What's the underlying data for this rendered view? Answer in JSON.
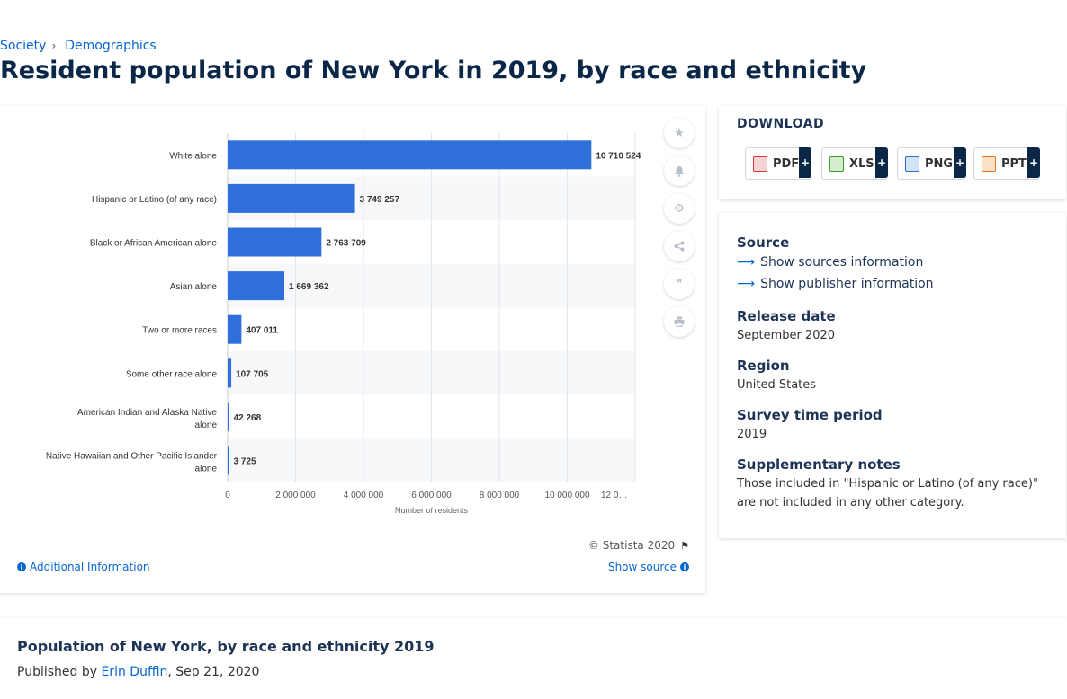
{
  "breadcrumb": {
    "item1": "Society",
    "item2": "Demographics"
  },
  "page_title": "Resident population of New York in 2019, by race and ethnicity",
  "chart_data": {
    "type": "bar",
    "orientation": "horizontal",
    "categories": [
      "White alone",
      "Hispanic or Latino (of any race)",
      "Black or African American alone",
      "Asian alone",
      "Two or more races",
      "Some other race alone",
      "American Indian and Alaska Native alone",
      "Native Hawaiian and Other Pacific Islander alone"
    ],
    "values": [
      10710524,
      3749257,
      2763709,
      1669362,
      407011,
      107705,
      42268,
      3725
    ],
    "value_labels": [
      "10 710 524",
      "3 749 257",
      "2 763 709",
      "1 669 362",
      "407 011",
      "107 705",
      "42 268",
      "3 725"
    ],
    "x_ticks": [
      0,
      2000000,
      4000000,
      6000000,
      8000000,
      10000000,
      12000000
    ],
    "x_tick_labels": [
      "0",
      "2 000 000",
      "4 000 000",
      "6 000 000",
      "8 000 000",
      "10 000 000",
      "12 0…"
    ],
    "xlabel": "Number of residents",
    "xlim": [
      0,
      12000000
    ],
    "bar_color": "#2f6fdc"
  },
  "chart_footer": {
    "copyright": "© Statista 2020",
    "additional": "Additional Information",
    "show_source": "Show source"
  },
  "tools": [
    "star-icon",
    "bell-icon",
    "gear-icon",
    "share-icon",
    "quote-icon",
    "print-icon"
  ],
  "download": {
    "title": "DOWNLOAD",
    "pdf": "PDF",
    "xls": "XLS",
    "png": "PNG",
    "ppt": "PPT",
    "plus": "+"
  },
  "info": {
    "source_label": "Source",
    "show_sources": "Show sources information",
    "show_publisher": "Show publisher information",
    "release_label": "Release date",
    "release_value": "September 2020",
    "region_label": "Region",
    "region_value": "United States",
    "survey_label": "Survey time period",
    "survey_value": "2019",
    "notes_label": "Supplementary notes",
    "notes_line1": "Those included in \"Hispanic or Latino (of any race)\"",
    "notes_line2": "are not included in any other category."
  },
  "bottom": {
    "title": "Population of New York, by race and ethnicity 2019",
    "published_prefix": "Published by",
    "author": "Erin Duffin",
    "date": ", Sep 21, 2020"
  }
}
